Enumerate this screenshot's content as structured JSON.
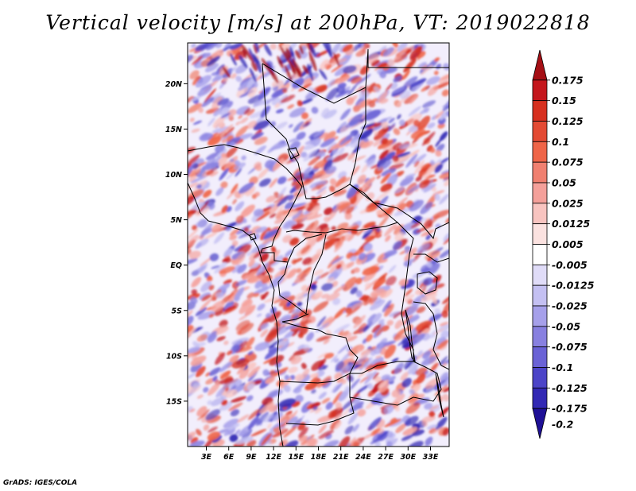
{
  "title": "Vertical velocity [m/s] at 200hPa, VT: 2019022818",
  "credit": "GrADS: IGES/COLA",
  "map": {
    "x_ticks": [
      "3E",
      "6E",
      "9E",
      "12E",
      "15E",
      "18E",
      "21E",
      "24E",
      "27E",
      "30E",
      "33E"
    ],
    "x_tick_values": [
      3,
      6,
      9,
      12,
      15,
      18,
      21,
      24,
      27,
      30,
      33
    ],
    "y_ticks": [
      "20N",
      "15N",
      "10N",
      "5N",
      "EQ",
      "5S",
      "10S",
      "15S"
    ],
    "y_tick_values": [
      20,
      15,
      10,
      5,
      0,
      -5,
      -10,
      -15
    ],
    "lon_range": [
      0.5,
      35.5
    ],
    "lat_range": [
      -20,
      24.5
    ]
  },
  "colorbar": {
    "labels": [
      "0.175",
      "0.15",
      "0.125",
      "0.1",
      "0.075",
      "0.05",
      "0.025",
      "0.0125",
      "0.005",
      "-0.005",
      "-0.0125",
      "-0.025",
      "-0.05",
      "-0.075",
      "-0.1",
      "-0.125",
      "-0.175",
      "-0.2"
    ],
    "colors": [
      "#a50f15",
      "#c4161c",
      "#d7301f",
      "#e34a33",
      "#ef6548",
      "#f08070",
      "#f4a09a",
      "#f8c4c0",
      "#fbe2e0",
      "#ffffff",
      "#e0dcf8",
      "#c4c0f2",
      "#a6a0ea",
      "#8880e0",
      "#6a62d6",
      "#4c44c8",
      "#3228b4",
      "#1e1096"
    ]
  }
}
